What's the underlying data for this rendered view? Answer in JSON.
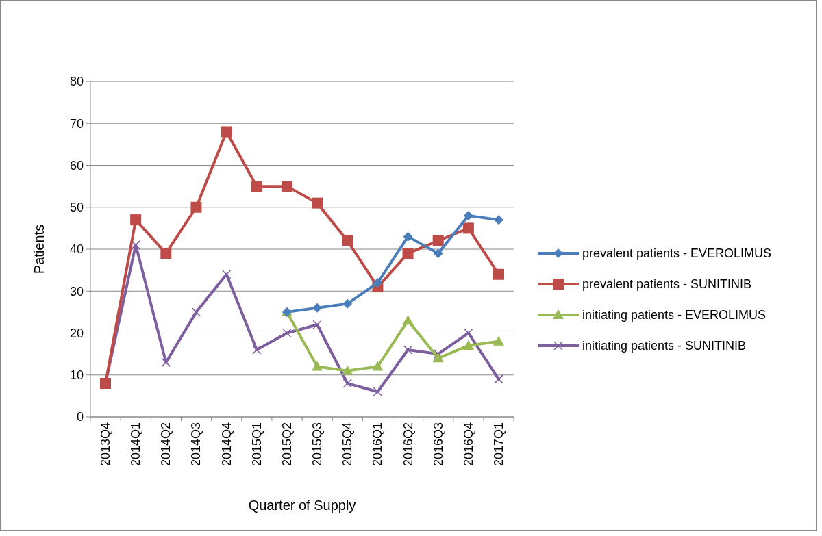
{
  "chart_data": {
    "type": "line",
    "xlabel": "Quarter of Supply",
    "ylabel": "Patients",
    "categories": [
      "2013Q4",
      "2014Q1",
      "2014Q2",
      "2014Q3",
      "2014Q4",
      "2015Q1",
      "2015Q2",
      "2015Q3",
      "2015Q4",
      "2016Q1",
      "2016Q2",
      "2016Q3",
      "2016Q4",
      "2017Q1"
    ],
    "series": [
      {
        "name": "prevalent patients - EVEROLIMUS",
        "color": "#4a7ebb",
        "marker": "diamond",
        "values": [
          null,
          null,
          null,
          null,
          null,
          null,
          25,
          26,
          27,
          32,
          43,
          39,
          48,
          47
        ]
      },
      {
        "name": "prevalent patients - SUNITINIB",
        "color": "#be4b48",
        "marker": "square",
        "values": [
          8,
          47,
          39,
          50,
          68,
          55,
          55,
          51,
          42,
          31,
          39,
          42,
          45,
          34
        ]
      },
      {
        "name": "initiating patients - EVEROLIMUS",
        "color": "#98b954",
        "marker": "triangle",
        "values": [
          null,
          null,
          null,
          null,
          null,
          null,
          25,
          12,
          11,
          12,
          23,
          14,
          17,
          18
        ]
      },
      {
        "name": "initiating patients - SUNITINIB",
        "color": "#7d5fa0",
        "marker": "cross",
        "values": [
          8,
          41,
          13,
          25,
          34,
          16,
          20,
          22,
          8,
          6,
          16,
          15,
          20,
          9
        ]
      }
    ],
    "ylim": [
      0,
      80
    ],
    "yticks": [
      0,
      10,
      20,
      30,
      40,
      50,
      60,
      70,
      80
    ],
    "grid": "y",
    "legend": "right",
    "line_style": "solid"
  }
}
